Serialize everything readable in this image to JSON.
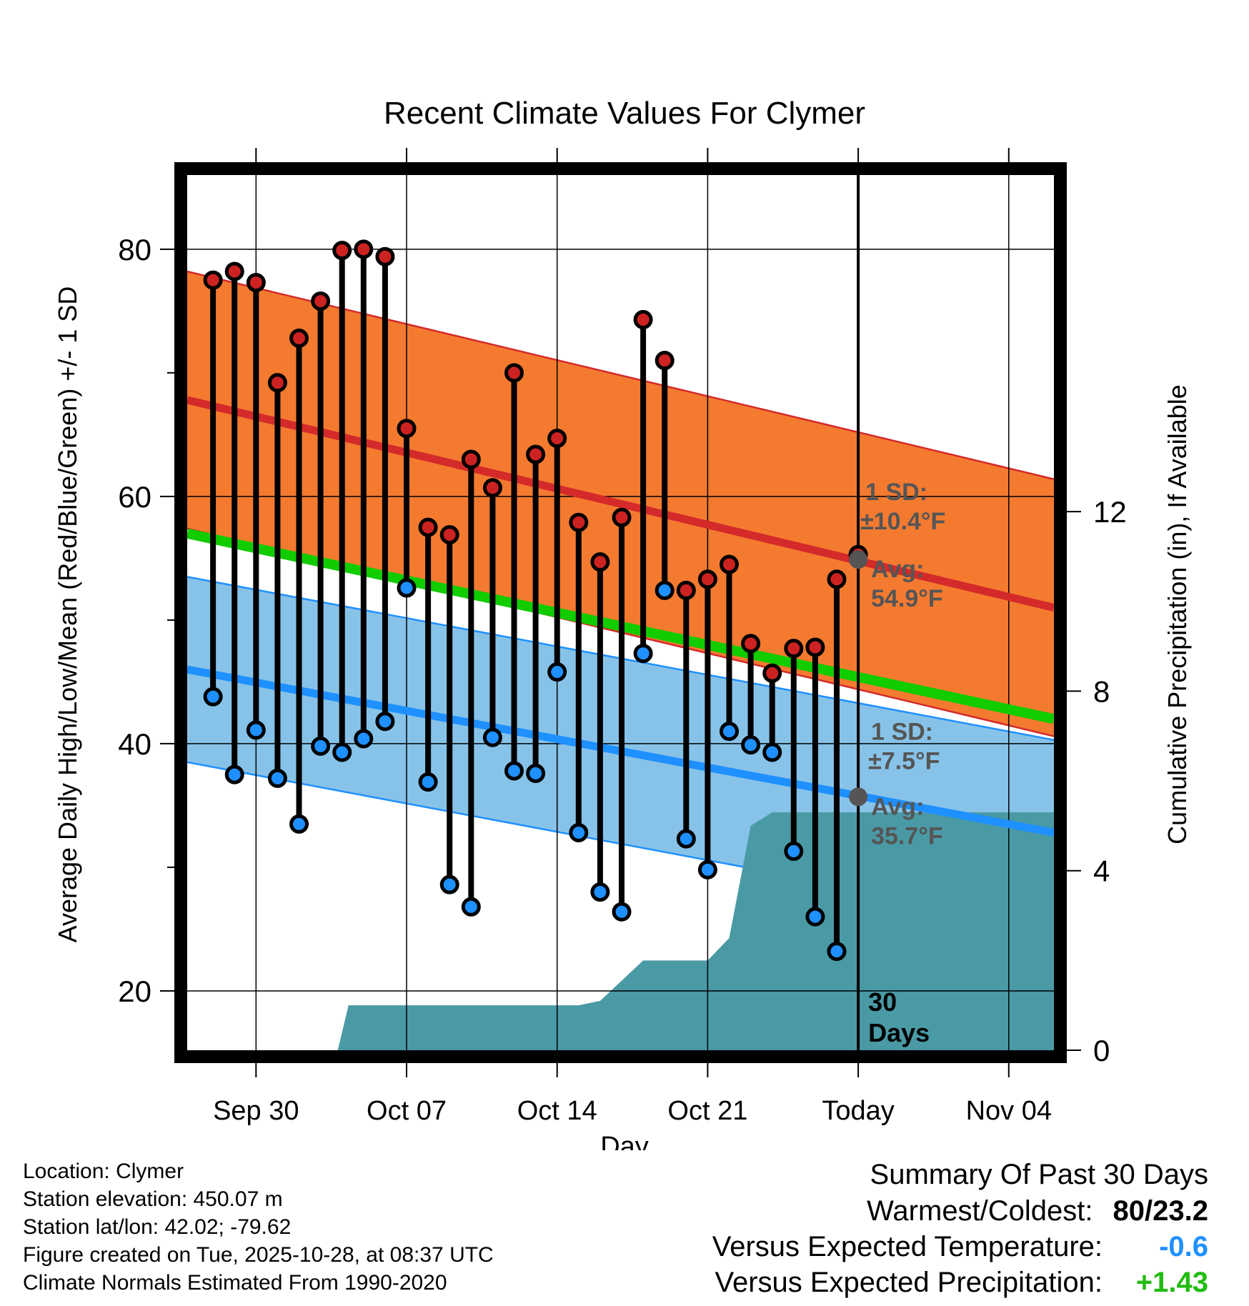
{
  "chart_data": {
    "type": "line",
    "title": "Recent Climate Values For Clymer",
    "xlabel": "Day",
    "ylabel": "Average Daily High/Low/Mean (Red/Blue/Green) +/- 1 SD",
    "y2label": "Cumulative Precipitation (in), If Available",
    "x_tick_labels": [
      "Sep 30",
      "Oct 07",
      "Oct 14",
      "Oct 21",
      "Today",
      "Nov 04"
    ],
    "x_tick_days": [
      2,
      9,
      16,
      23,
      30,
      37
    ],
    "xlim": [
      -1.2,
      39.1
    ],
    "ylim": [
      15.2,
      86
    ],
    "y_ticks": [
      20,
      40,
      60,
      80
    ],
    "y_minor_ticks": [
      30,
      50,
      70
    ],
    "y2lim": [
      0,
      19.5
    ],
    "y2_ticks": [
      0,
      4,
      8,
      12
    ],
    "today_day": 30,
    "days_label": "30 Days",
    "normal_high": {
      "start": [
        -1.2,
        67.8
      ],
      "end": [
        39.1,
        51.0
      ],
      "sd": 10.4
    },
    "normal_low": {
      "start": [
        -1.2,
        46.0
      ],
      "end": [
        39.1,
        32.8
      ],
      "sd": 7.5
    },
    "normal_mean": {
      "start": [
        -1.2,
        57.0
      ],
      "end": [
        39.1,
        42.0
      ]
    },
    "annotations": {
      "high_sd_line1": "1 SD:",
      "high_sd_line2": "±10.4°F",
      "high_avg_line1": "Avg:",
      "high_avg_line2": "54.9°F",
      "low_sd_line1": "1 SD:",
      "low_sd_line2": "±7.5°F",
      "low_avg_line1": "Avg:",
      "low_avg_line2": "35.7°F"
    },
    "high_avg_today": 54.9,
    "low_avg_today": 35.7,
    "series": [
      {
        "name": "Daily High",
        "color": "#cc2222",
        "values": [
          77.5,
          78.2,
          77.3,
          69.2,
          72.8,
          75.8,
          79.9,
          80.0,
          79.4,
          65.5,
          57.5,
          56.9,
          63.0,
          60.7,
          70.0,
          63.4,
          64.7,
          57.9,
          54.7,
          58.3,
          74.3,
          71.0,
          52.4,
          53.3,
          54.5,
          48.1,
          45.7,
          47.7,
          47.8,
          53.3,
          55.3
        ]
      },
      {
        "name": "Daily Low",
        "color": "#1e90ff",
        "values": [
          43.8,
          37.5,
          41.1,
          37.2,
          33.5,
          39.8,
          39.3,
          40.4,
          41.8,
          52.6,
          36.9,
          28.6,
          26.8,
          40.5,
          37.8,
          37.6,
          45.8,
          32.8,
          28.0,
          26.4,
          47.3,
          52.4,
          32.3,
          29.8,
          41.0,
          39.9,
          39.3,
          31.3,
          26.0,
          23.2
        ]
      }
    ],
    "precipitation": {
      "name": "Cumulative Precipitation",
      "color": "#4a9aa5",
      "days": [
        -1.2,
        5.8,
        6.3,
        8.0,
        12.0,
        17.0,
        18.0,
        20.0,
        21.0,
        22.0,
        23.0,
        24.0,
        25.0,
        26.0,
        27.0,
        39.1
      ],
      "values": [
        0,
        0,
        1.0,
        1.0,
        1.0,
        1.0,
        1.1,
        2.0,
        2.0,
        2.0,
        2.0,
        2.5,
        5.0,
        5.3,
        5.3,
        5.3
      ]
    }
  },
  "footer": {
    "location": "Location: Clymer",
    "elevation": "Station elevation: 450.07 m",
    "latlon": "Station lat/lon: 42.02; -79.62",
    "created": "Figure created on Tue, 2025-10-28, at 08:37 UTC",
    "normals": "Climate Normals Estimated From 1990-2020"
  },
  "summary": {
    "title": "Summary Of Past 30 Days",
    "warmest_label": "Warmest/Coldest:",
    "warmest_value": "80/23.2",
    "temp_label": "Versus Expected Temperature:",
    "temp_value": "-0.6",
    "temp_color": "#1e90ff",
    "precip_label": "Versus Expected Precipitation:",
    "precip_value": "+1.43",
    "precip_color": "#22bb11"
  }
}
